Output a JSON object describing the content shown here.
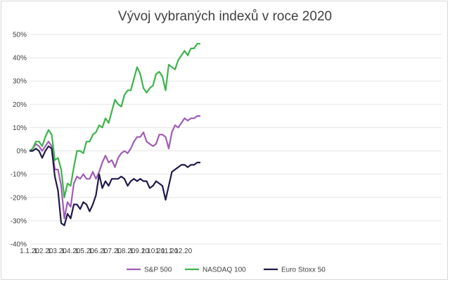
{
  "chart_data": {
    "type": "line",
    "title": "Vývoj vybraných indexů  v roce 2020",
    "xlabel": "",
    "ylabel": "",
    "ylim": [
      -40,
      50
    ],
    "yticks": [
      -40,
      -30,
      -20,
      -10,
      0,
      10,
      20,
      30,
      40,
      50
    ],
    "ytick_labels": [
      "-40%",
      "-30%",
      "-20%",
      "-10%",
      "0%",
      "10%",
      "20%",
      "30%",
      "40%",
      "50%"
    ],
    "xtick_labels": [
      "1.1.20",
      "1.2.20",
      "1.3.20",
      "1.4.20",
      "1.5.20",
      "1.6.20",
      "1.7.20",
      "1.8.20",
      "1.9.20",
      "1.10.20",
      "1.11.20",
      "1.12.20"
    ],
    "x_week_count": 52,
    "grid": true,
    "legend_position": "bottom",
    "series": [
      {
        "name": "S&P 500",
        "color": "#a05cb4",
        "values": [
          0,
          1,
          3,
          2,
          0,
          2,
          4,
          2,
          -8,
          -8,
          -15,
          -29,
          -22,
          -24,
          -14,
          -11,
          -12,
          -10,
          -12,
          -12,
          -9,
          -12,
          -9,
          -5,
          -2,
          -5,
          -4,
          -7,
          -3,
          -1,
          0,
          -1,
          1,
          4,
          6,
          6,
          8,
          4,
          3,
          2,
          3,
          7,
          7,
          6,
          1,
          8,
          11,
          10,
          12,
          14,
          13,
          14,
          14,
          15,
          15
        ]
      },
      {
        "name": "NASDAQ 100",
        "color": "#3cb44b",
        "values": [
          0,
          1,
          4,
          4,
          2,
          6,
          9,
          7,
          -4,
          -3,
          -8,
          -20,
          -14,
          -15,
          -7,
          0,
          0,
          -1,
          4,
          4,
          7,
          8,
          11,
          10,
          14,
          12,
          17,
          22,
          20,
          19,
          24,
          26,
          26,
          31,
          36,
          33,
          27,
          25,
          27,
          28,
          33,
          34,
          32,
          26,
          37,
          36,
          35,
          39,
          41,
          43,
          41,
          44,
          44,
          46,
          46
        ]
      },
      {
        "name": "Euro Stoxx 50",
        "color": "#1f1a4a",
        "values": [
          0,
          0,
          1,
          0,
          -3,
          0,
          2,
          1,
          -11,
          -17,
          -31,
          -32,
          -27,
          -29,
          -23,
          -23,
          -25,
          -22,
          -23,
          -26,
          -23,
          -19,
          -10,
          -16,
          -13,
          -15,
          -12,
          -12,
          -12,
          -11,
          -12,
          -15,
          -13,
          -12,
          -13,
          -12,
          -13,
          -13,
          -16,
          -15,
          -13,
          -14,
          -15,
          -21,
          -15,
          -9,
          -8,
          -7,
          -6,
          -6,
          -7,
          -6,
          -6,
          -5,
          -5
        ]
      }
    ]
  }
}
